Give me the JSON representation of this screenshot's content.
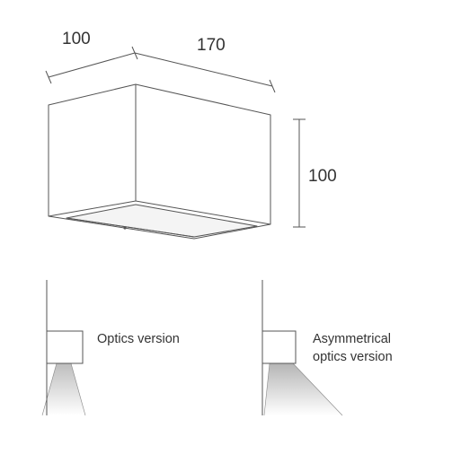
{
  "dimensions": {
    "depth": "100",
    "width": "170",
    "height": "100"
  },
  "variants": [
    {
      "label": "Optics version"
    },
    {
      "label_line1": "Asymmetrical",
      "label_line2": "optics version"
    }
  ]
}
